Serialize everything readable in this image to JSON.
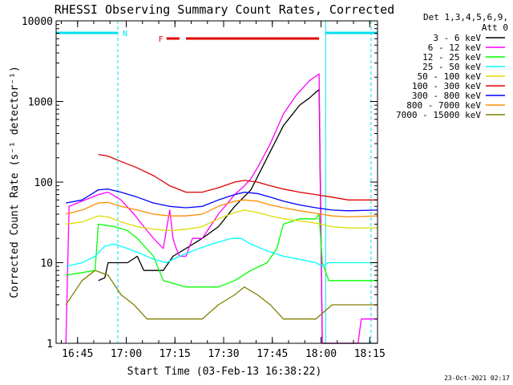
{
  "chart_data": {
    "type": "line",
    "title": "RHESSI Observing Summary Count Rates, Corrected",
    "xlabel": "Start Time (03-Feb-13 16:38:22)",
    "ylabel": "Corrected Count Rate (s⁻¹ detector⁻¹)",
    "yscale": "log",
    "ylim": [
      1,
      10000
    ],
    "xlim_minutes": [
      0,
      99
    ],
    "x_units": "minutes after 16:38:22",
    "y_ticks": [
      {
        "value": 1,
        "label": "1"
      },
      {
        "value": 10,
        "label": "10"
      },
      {
        "value": 100,
        "label": "100"
      },
      {
        "value": 1000,
        "label": "1000"
      },
      {
        "value": 10000,
        "label": "10000"
      }
    ],
    "x_ticks": [
      {
        "value": 6.6,
        "label": "16:45"
      },
      {
        "value": 21.6,
        "label": "17:00"
      },
      {
        "value": 36.6,
        "label": "17:15"
      },
      {
        "value": 51.6,
        "label": "17:30"
      },
      {
        "value": 66.6,
        "label": "17:45"
      },
      {
        "value": 81.6,
        "label": "18:00"
      },
      {
        "value": 96.6,
        "label": "18:15"
      }
    ],
    "legend": {
      "header": [
        "Det 1,3,4,5,6,9,",
        "Att 0"
      ],
      "placement": "right"
    },
    "flags": [
      {
        "name": "night",
        "label": "N",
        "color": "#00e0f0",
        "start": 0,
        "end": 19
      },
      {
        "name": "night",
        "label": "",
        "color": "#00e0f0",
        "start": 83,
        "end": 99
      },
      {
        "name": "flare",
        "label": "F",
        "color": "#e00000",
        "start": 34,
        "end": 81
      }
    ],
    "intervals": {
      "solid_lines": [
        0,
        83
      ],
      "dashed_lines": [
        19,
        97
      ]
    },
    "series": [
      {
        "name": "3 - 6 keV",
        "color": "#000000",
        "points": [
          [
            13,
            6
          ],
          [
            15,
            6.5
          ],
          [
            16,
            10
          ],
          [
            22,
            10
          ],
          [
            25,
            12
          ],
          [
            27,
            8
          ],
          [
            33,
            8
          ],
          [
            36,
            12
          ],
          [
            40,
            15
          ],
          [
            45,
            20
          ],
          [
            50,
            28
          ],
          [
            55,
            50
          ],
          [
            60,
            80
          ],
          [
            65,
            200
          ],
          [
            70,
            500
          ],
          [
            75,
            900
          ],
          [
            78,
            1100
          ],
          [
            80,
            1300
          ],
          [
            81,
            1400
          ],
          [
            82,
            1
          ],
          [
            99,
            1
          ]
        ]
      },
      {
        "name": "6 - 12 keV",
        "color": "#ff00ff",
        "points": [
          [
            3,
            1
          ],
          [
            4,
            50
          ],
          [
            13,
            70
          ],
          [
            16,
            75
          ],
          [
            20,
            60
          ],
          [
            24,
            40
          ],
          [
            28,
            25
          ],
          [
            30,
            20
          ],
          [
            33,
            15
          ],
          [
            35,
            45
          ],
          [
            36,
            20
          ],
          [
            37,
            15
          ],
          [
            38,
            12
          ],
          [
            40,
            12
          ],
          [
            42,
            20
          ],
          [
            45,
            20
          ],
          [
            50,
            40
          ],
          [
            55,
            70
          ],
          [
            58,
            90
          ],
          [
            60,
            110
          ],
          [
            62,
            150
          ],
          [
            66,
            300
          ],
          [
            70,
            700
          ],
          [
            74,
            1200
          ],
          [
            78,
            1800
          ],
          [
            81,
            2200
          ],
          [
            82,
            1
          ],
          [
            93,
            1
          ],
          [
            94,
            2
          ],
          [
            99,
            2
          ]
        ]
      },
      {
        "name": "12 - 25 keV",
        "color": "#00ff00",
        "points": [
          [
            3,
            7
          ],
          [
            12,
            8
          ],
          [
            13,
            30
          ],
          [
            18,
            28
          ],
          [
            22,
            25
          ],
          [
            25,
            20
          ],
          [
            30,
            12
          ],
          [
            33,
            6
          ],
          [
            40,
            5
          ],
          [
            50,
            5
          ],
          [
            55,
            6
          ],
          [
            60,
            8
          ],
          [
            65,
            10
          ],
          [
            68,
            15
          ],
          [
            70,
            30
          ],
          [
            75,
            35
          ],
          [
            80,
            35
          ],
          [
            81,
            40
          ],
          [
            82,
            10
          ],
          [
            84,
            6
          ],
          [
            99,
            6
          ]
        ]
      },
      {
        "name": "25 - 50 keV",
        "color": "#00ffff",
        "points": [
          [
            3,
            9
          ],
          [
            8,
            10
          ],
          [
            12,
            12
          ],
          [
            15,
            16
          ],
          [
            18,
            17
          ],
          [
            22,
            15
          ],
          [
            26,
            13
          ],
          [
            30,
            11
          ],
          [
            34,
            10
          ],
          [
            38,
            12
          ],
          [
            42,
            14
          ],
          [
            46,
            16
          ],
          [
            50,
            18
          ],
          [
            54,
            20
          ],
          [
            57,
            20
          ],
          [
            60,
            17
          ],
          [
            65,
            14
          ],
          [
            70,
            12
          ],
          [
            75,
            11
          ],
          [
            80,
            10
          ],
          [
            82,
            9
          ],
          [
            84,
            10
          ],
          [
            99,
            10
          ]
        ]
      },
      {
        "name": "50 - 100 keV",
        "color": "#dddd00",
        "points": [
          [
            3,
            30
          ],
          [
            8,
            32
          ],
          [
            13,
            38
          ],
          [
            16,
            37
          ],
          [
            20,
            32
          ],
          [
            25,
            28
          ],
          [
            30,
            26
          ],
          [
            35,
            25
          ],
          [
            40,
            26
          ],
          [
            45,
            28
          ],
          [
            50,
            35
          ],
          [
            55,
            42
          ],
          [
            58,
            45
          ],
          [
            62,
            42
          ],
          [
            66,
            38
          ],
          [
            70,
            35
          ],
          [
            75,
            33
          ],
          [
            80,
            31
          ],
          [
            85,
            28
          ],
          [
            90,
            27
          ],
          [
            99,
            27
          ]
        ]
      },
      {
        "name": "100 - 300 keV",
        "color": "#e00000",
        "points": [
          [
            13,
            220
          ],
          [
            16,
            210
          ],
          [
            20,
            180
          ],
          [
            25,
            150
          ],
          [
            30,
            120
          ],
          [
            35,
            90
          ],
          [
            40,
            75
          ],
          [
            45,
            75
          ],
          [
            50,
            85
          ],
          [
            55,
            100
          ],
          [
            58,
            105
          ],
          [
            62,
            100
          ],
          [
            66,
            90
          ],
          [
            70,
            82
          ],
          [
            75,
            75
          ],
          [
            80,
            70
          ],
          [
            85,
            65
          ],
          [
            90,
            60
          ],
          [
            99,
            60
          ]
        ]
      },
      {
        "name": "300 - 800 keV",
        "color": "#0000ff",
        "points": [
          [
            3,
            55
          ],
          [
            8,
            60
          ],
          [
            13,
            80
          ],
          [
            16,
            82
          ],
          [
            20,
            75
          ],
          [
            25,
            65
          ],
          [
            30,
            55
          ],
          [
            35,
            50
          ],
          [
            40,
            48
          ],
          [
            45,
            50
          ],
          [
            50,
            60
          ],
          [
            55,
            70
          ],
          [
            58,
            75
          ],
          [
            62,
            72
          ],
          [
            66,
            65
          ],
          [
            70,
            58
          ],
          [
            75,
            52
          ],
          [
            80,
            48
          ],
          [
            85,
            45
          ],
          [
            90,
            44
          ],
          [
            99,
            45
          ]
        ]
      },
      {
        "name": "800 - 7000 keV",
        "color": "#ff8c00",
        "points": [
          [
            3,
            40
          ],
          [
            8,
            45
          ],
          [
            13,
            55
          ],
          [
            16,
            56
          ],
          [
            20,
            50
          ],
          [
            25,
            45
          ],
          [
            30,
            40
          ],
          [
            35,
            38
          ],
          [
            40,
            38
          ],
          [
            45,
            40
          ],
          [
            50,
            50
          ],
          [
            55,
            58
          ],
          [
            58,
            60
          ],
          [
            62,
            58
          ],
          [
            66,
            52
          ],
          [
            70,
            48
          ],
          [
            75,
            44
          ],
          [
            80,
            41
          ],
          [
            85,
            38
          ],
          [
            90,
            37
          ],
          [
            99,
            38
          ]
        ]
      },
      {
        "name": "7000 - 15000 keV",
        "color": "#808000",
        "points": [
          [
            3,
            3
          ],
          [
            8,
            6
          ],
          [
            12,
            8
          ],
          [
            16,
            7
          ],
          [
            20,
            4
          ],
          [
            24,
            3
          ],
          [
            28,
            2
          ],
          [
            32,
            2
          ],
          [
            36,
            2
          ],
          [
            40,
            2
          ],
          [
            45,
            2
          ],
          [
            50,
            3
          ],
          [
            55,
            4
          ],
          [
            58,
            5
          ],
          [
            62,
            4
          ],
          [
            66,
            3
          ],
          [
            70,
            2
          ],
          [
            75,
            2
          ],
          [
            80,
            2
          ],
          [
            85,
            3
          ],
          [
            90,
            3
          ],
          [
            99,
            3
          ]
        ]
      }
    ]
  },
  "footer": {
    "timestamp": "23-Oct-2021 02:17"
  }
}
